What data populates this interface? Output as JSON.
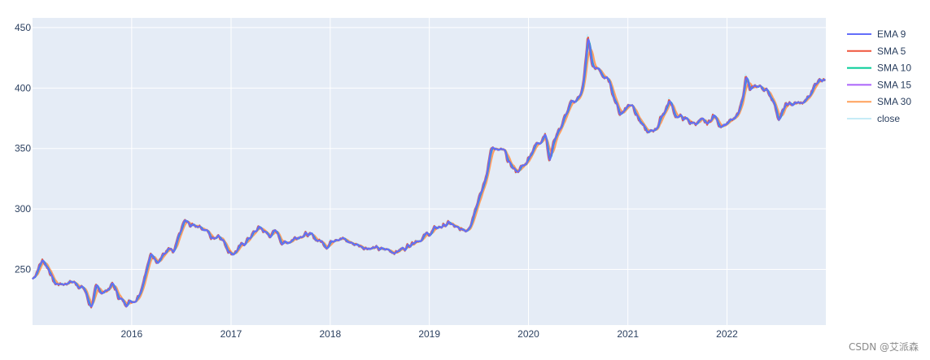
{
  "watermark": "CSDN @艾派森",
  "chart_data": {
    "type": "line",
    "title": "",
    "xlabel": "",
    "ylabel": "",
    "x_range": [
      "2015-01-01",
      "2022-12-31"
    ],
    "ylim": [
      204,
      458
    ],
    "x_ticks": [
      "2016",
      "2017",
      "2018",
      "2019",
      "2020",
      "2021",
      "2022"
    ],
    "y_ticks": [
      250,
      300,
      350,
      400,
      450
    ],
    "grid": true,
    "legend_position": "top-right",
    "plot_bgcolor": "#e5ecf6",
    "series": [
      {
        "name": "EMA 9",
        "color": "#636efa",
        "span": 3,
        "width": 2
      },
      {
        "name": "SMA 5",
        "color": "#ef553b",
        "span": 2,
        "width": 2
      },
      {
        "name": "SMA 10",
        "color": "#00cc96",
        "span": 4,
        "width": 2
      },
      {
        "name": "SMA 15",
        "color": "#ab63fa",
        "span": 5,
        "width": 2
      },
      {
        "name": "SMA 30",
        "color": "#ffa15a",
        "span": 8,
        "width": 2
      },
      {
        "name": "close",
        "color": "#c6ecf7",
        "span": 1,
        "width": 2
      }
    ],
    "close_keypoints": [
      [
        "2015-01-01",
        242
      ],
      [
        "2015-01-20",
        252
      ],
      [
        "2015-02-05",
        258
      ],
      [
        "2015-03-01",
        250
      ],
      [
        "2015-03-20",
        238
      ],
      [
        "2015-04-15",
        238
      ],
      [
        "2015-05-20",
        240
      ],
      [
        "2015-06-15",
        238
      ],
      [
        "2015-07-10",
        233
      ],
      [
        "2015-07-25",
        222
      ],
      [
        "2015-08-05",
        220
      ],
      [
        "2015-08-20",
        234
      ],
      [
        "2015-09-20",
        231
      ],
      [
        "2015-10-20",
        238
      ],
      [
        "2015-11-10",
        228
      ],
      [
        "2015-12-01",
        222
      ],
      [
        "2016-01-15",
        226
      ],
      [
        "2016-02-01",
        234
      ],
      [
        "2016-02-20",
        250
      ],
      [
        "2016-03-10",
        262
      ],
      [
        "2016-04-01",
        258
      ],
      [
        "2016-05-15",
        266
      ],
      [
        "2016-06-01",
        262
      ],
      [
        "2016-06-20",
        276
      ],
      [
        "2016-07-10",
        290
      ],
      [
        "2016-08-01",
        286
      ],
      [
        "2016-09-01",
        287
      ],
      [
        "2016-10-01",
        282
      ],
      [
        "2016-10-20",
        275
      ],
      [
        "2016-11-15",
        280
      ],
      [
        "2016-12-10",
        270
      ],
      [
        "2017-01-01",
        263
      ],
      [
        "2017-02-01",
        268
      ],
      [
        "2017-03-01",
        275
      ],
      [
        "2017-04-15",
        285
      ],
      [
        "2017-05-15",
        278
      ],
      [
        "2017-06-15",
        281
      ],
      [
        "2017-07-10",
        271
      ],
      [
        "2017-08-10",
        275
      ],
      [
        "2017-09-20",
        280
      ],
      [
        "2017-11-01",
        276
      ],
      [
        "2017-12-20",
        270
      ],
      [
        "2018-01-20",
        278
      ],
      [
        "2018-03-01",
        273
      ],
      [
        "2018-04-15",
        270
      ],
      [
        "2018-06-01",
        268
      ],
      [
        "2018-07-01",
        266
      ],
      [
        "2018-08-01",
        266
      ],
      [
        "2018-09-01",
        265
      ],
      [
        "2018-10-01",
        268
      ],
      [
        "2018-11-01",
        274
      ],
      [
        "2018-12-01",
        276
      ],
      [
        "2019-01-01",
        280
      ],
      [
        "2019-02-01",
        285
      ],
      [
        "2019-03-15",
        288
      ],
      [
        "2019-04-15",
        282
      ],
      [
        "2019-05-15",
        283
      ],
      [
        "2019-06-01",
        290
      ],
      [
        "2019-06-15",
        300
      ],
      [
        "2019-07-01",
        313
      ],
      [
        "2019-07-20",
        320
      ],
      [
        "2019-08-01",
        332
      ],
      [
        "2019-08-15",
        354
      ],
      [
        "2019-09-01",
        348
      ],
      [
        "2019-10-01",
        347
      ],
      [
        "2019-10-20",
        337
      ],
      [
        "2019-11-15",
        331
      ],
      [
        "2019-12-15",
        336
      ],
      [
        "2020-01-15",
        350
      ],
      [
        "2020-02-15",
        358
      ],
      [
        "2020-03-01",
        365
      ],
      [
        "2020-03-15",
        337
      ],
      [
        "2020-04-01",
        358
      ],
      [
        "2020-05-01",
        370
      ],
      [
        "2020-06-01",
        386
      ],
      [
        "2020-07-01",
        392
      ],
      [
        "2020-07-20",
        405
      ],
      [
        "2020-08-05",
        443
      ],
      [
        "2020-08-20",
        418
      ],
      [
        "2020-09-10",
        415
      ],
      [
        "2020-10-01",
        410
      ],
      [
        "2020-10-20",
        405
      ],
      [
        "2020-11-10",
        392
      ],
      [
        "2020-12-01",
        378
      ],
      [
        "2020-12-20",
        384
      ],
      [
        "2021-01-15",
        388
      ],
      [
        "2021-02-05",
        376
      ],
      [
        "2021-03-01",
        365
      ],
      [
        "2021-03-20",
        362
      ],
      [
        "2021-04-15",
        368
      ],
      [
        "2021-05-10",
        380
      ],
      [
        "2021-06-01",
        390
      ],
      [
        "2021-06-20",
        378
      ],
      [
        "2021-07-20",
        375
      ],
      [
        "2021-08-20",
        371
      ],
      [
        "2021-09-20",
        372
      ],
      [
        "2021-10-20",
        370
      ],
      [
        "2021-11-10",
        378
      ],
      [
        "2021-12-01",
        370
      ],
      [
        "2022-01-01",
        371
      ],
      [
        "2022-02-01",
        374
      ],
      [
        "2022-02-20",
        388
      ],
      [
        "2022-03-10",
        410
      ],
      [
        "2022-03-25",
        396
      ],
      [
        "2022-04-15",
        402
      ],
      [
        "2022-05-15",
        400
      ],
      [
        "2022-06-15",
        392
      ],
      [
        "2022-07-10",
        374
      ],
      [
        "2022-08-01",
        385
      ],
      [
        "2022-09-01",
        387
      ],
      [
        "2022-10-01",
        387
      ],
      [
        "2022-11-01",
        393
      ],
      [
        "2022-11-20",
        405
      ],
      [
        "2022-12-31",
        409
      ]
    ]
  }
}
